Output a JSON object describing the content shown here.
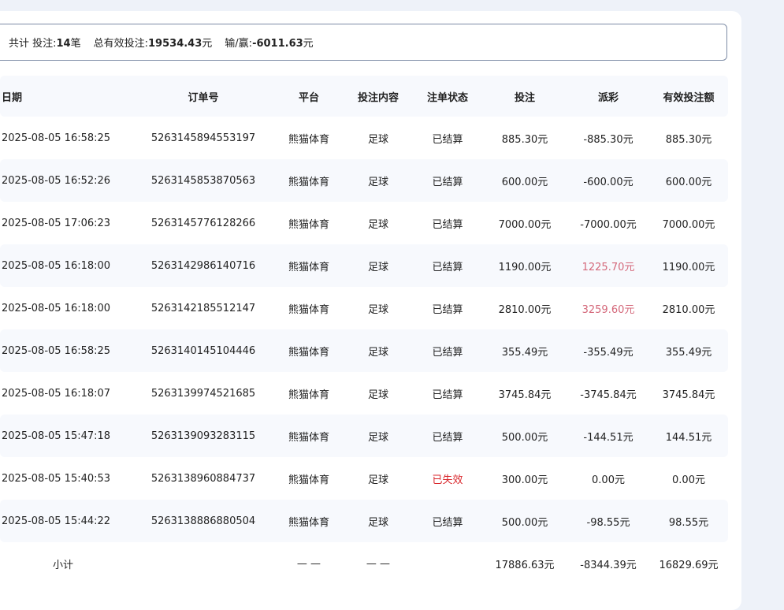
{
  "summary": {
    "total_label": "共计 投注:",
    "count": "14",
    "count_unit": "笔",
    "valid_label": "总有效投注:",
    "valid_value": "19534.43",
    "valid_unit": "元",
    "winloss_label": "输/赢:",
    "winloss_value": "-6011.63",
    "winloss_unit": "元"
  },
  "columns": [
    "日期",
    "订单号",
    "平台",
    "投注内容",
    "注单状态",
    "投注",
    "派彩",
    "有效投注额"
  ],
  "rows": [
    {
      "date": "2025-08-05 16:58:25",
      "order": "5263145894553197",
      "platform": "熊猫体育",
      "content": "足球",
      "status": "已结算",
      "bet": "885.30元",
      "payout": "-885.30元",
      "valid": "885.30元"
    },
    {
      "date": "2025-08-05 16:52:26",
      "order": "5263145853870563",
      "platform": "熊猫体育",
      "content": "足球",
      "status": "已结算",
      "bet": "600.00元",
      "payout": "-600.00元",
      "valid": "600.00元"
    },
    {
      "date": "2025-08-05 17:06:23",
      "order": "5263145776128266",
      "platform": "熊猫体育",
      "content": "足球",
      "status": "已结算",
      "bet": "7000.00元",
      "payout": "-7000.00元",
      "valid": "7000.00元"
    },
    {
      "date": "2025-08-05 16:18:00",
      "order": "5263142986140716",
      "platform": "熊猫体育",
      "content": "足球",
      "status": "已结算",
      "bet": "1190.00元",
      "payout": "1225.70元",
      "valid": "1190.00元"
    },
    {
      "date": "2025-08-05 16:18:00",
      "order": "5263142185512147",
      "platform": "熊猫体育",
      "content": "足球",
      "status": "已结算",
      "bet": "2810.00元",
      "payout": "3259.60元",
      "valid": "2810.00元"
    },
    {
      "date": "2025-08-05 16:58:25",
      "order": "5263140145104446",
      "platform": "熊猫体育",
      "content": "足球",
      "status": "已结算",
      "bet": "355.49元",
      "payout": "-355.49元",
      "valid": "355.49元"
    },
    {
      "date": "2025-08-05 16:18:07",
      "order": "5263139974521685",
      "platform": "熊猫体育",
      "content": "足球",
      "status": "已结算",
      "bet": "3745.84元",
      "payout": "-3745.84元",
      "valid": "3745.84元"
    },
    {
      "date": "2025-08-05 15:47:18",
      "order": "5263139093283115",
      "platform": "熊猫体育",
      "content": "足球",
      "status": "已结算",
      "bet": "500.00元",
      "payout": "-144.51元",
      "valid": "144.51元"
    },
    {
      "date": "2025-08-05 15:40:53",
      "order": "5263138960884737",
      "platform": "熊猫体育",
      "content": "足球",
      "status": "已失效",
      "bet": "300.00元",
      "payout": "0.00元",
      "valid": "0.00元"
    },
    {
      "date": "2025-08-05 15:44:22",
      "order": "5263138886880504",
      "platform": "熊猫体育",
      "content": "足球",
      "status": "已结算",
      "bet": "500.00元",
      "payout": "-98.55元",
      "valid": "98.55元"
    }
  ],
  "subtotal": {
    "label": "小计",
    "platform": "— —",
    "content": "— —",
    "bet": "17886.63元",
    "payout": "-8344.39元",
    "valid": "16829.69元"
  },
  "colors": {
    "win": "#d4687a",
    "invalid": "#d9262b",
    "header_bg": "#f7f9fd"
  }
}
